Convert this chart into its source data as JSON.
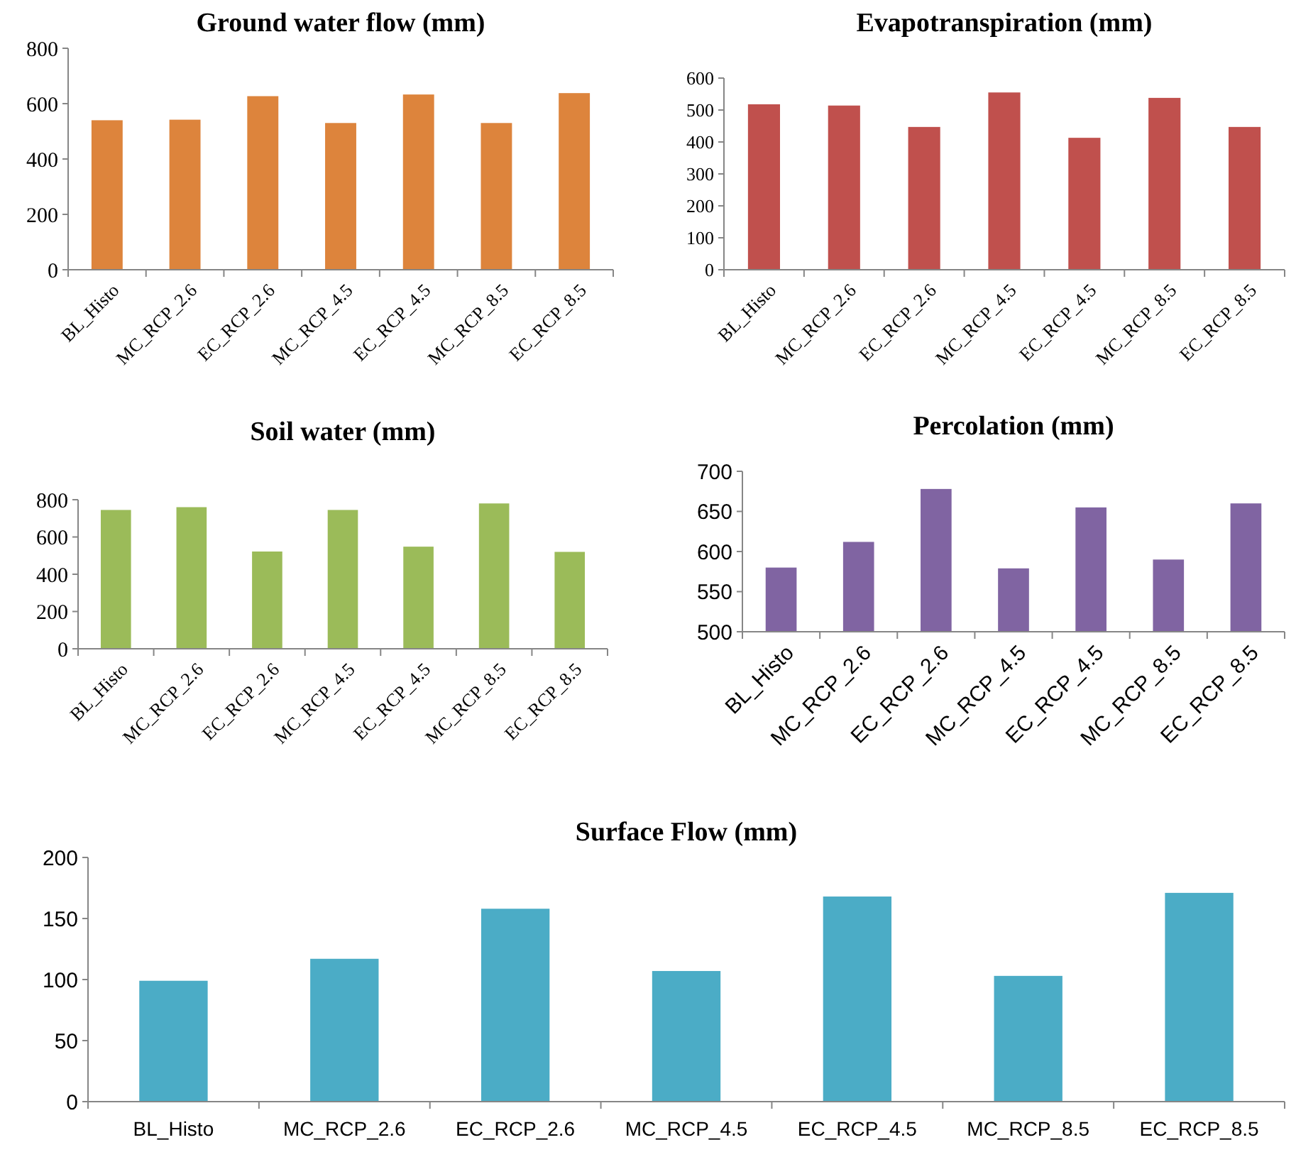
{
  "chart_data": [
    {
      "type": "bar",
      "title": "Ground water flow (mm)",
      "categories": [
        "BL_Histo",
        "MC_RCP_2.6",
        "EC_RCP_2.6",
        "MC_RCP_4.5",
        "EC_RCP_4.5",
        "MC_RCP_8.5",
        "EC_RCP_8.5"
      ],
      "values": [
        540,
        542,
        627,
        530,
        633,
        530,
        638
      ],
      "color": "#dd843c",
      "ylim": [
        0,
        800
      ],
      "yticks": [
        0,
        200,
        400,
        600,
        800
      ],
      "grid": false
    },
    {
      "type": "bar",
      "title": "Evapotranspiration (mm)",
      "categories": [
        "BL_Histo",
        "MC_RCP_2.6",
        "EC_RCP_2.6",
        "MC_RCP_4.5",
        "EC_RCP_4.5",
        "MC_RCP_8.5",
        "EC_RCP_8.5"
      ],
      "values": [
        518,
        514,
        447,
        555,
        413,
        538,
        447
      ],
      "color": "#c0504d",
      "ylim": [
        0,
        600
      ],
      "yticks": [
        0,
        100,
        200,
        300,
        400,
        500,
        600
      ],
      "grid": false
    },
    {
      "type": "bar",
      "title": "Soil water (mm)",
      "categories": [
        "BL_Histo",
        "MC_RCP_2.6",
        "EC_RCP_2.6",
        "MC_RCP_4.5",
        "EC_RCP_4.5",
        "MC_RCP_8.5",
        "EC_RCP_8.5"
      ],
      "values": [
        745,
        760,
        522,
        745,
        548,
        780,
        520
      ],
      "color": "#9bbb59",
      "ylim": [
        0,
        800
      ],
      "yticks": [
        0,
        200,
        400,
        600,
        800
      ],
      "grid": false
    },
    {
      "type": "bar",
      "title": "Percolation (mm)",
      "categories": [
        "BL_Histo",
        "MC_RCP_2.6",
        "EC_RCP_2.6",
        "MC_RCP_4.5",
        "EC_RCP_4.5",
        "MC_RCP_8.5",
        "EC_RCP_8.5"
      ],
      "values": [
        580,
        612,
        678,
        579,
        655,
        590,
        660
      ],
      "color": "#8064a2",
      "ylim": [
        500,
        700
      ],
      "yticks": [
        500,
        550,
        600,
        650,
        700
      ],
      "grid": false
    },
    {
      "type": "bar",
      "title": "Surface Flow (mm)",
      "categories": [
        "BL_Histo",
        "MC_RCP_2.6",
        "EC_RCP_2.6",
        "MC_RCP_4.5",
        "EC_RCP_4.5",
        "MC_RCP_8.5",
        "EC_RCP_8.5"
      ],
      "values": [
        99,
        117,
        158,
        107,
        168,
        103,
        171
      ],
      "color": "#4bacc6",
      "ylim": [
        0,
        200
      ],
      "yticks": [
        0,
        50,
        100,
        150,
        200
      ],
      "grid": false
    }
  ]
}
